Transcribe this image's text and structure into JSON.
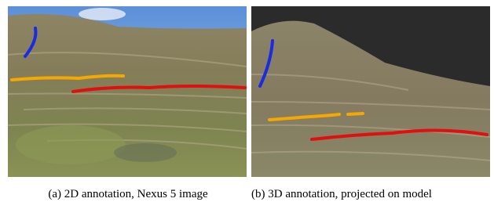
{
  "figure": {
    "subfigures": [
      {
        "caption": "(a) 2D annotation, Nexus 5 image"
      },
      {
        "caption": "(b) 3D annotation, projected on model"
      }
    ]
  }
}
